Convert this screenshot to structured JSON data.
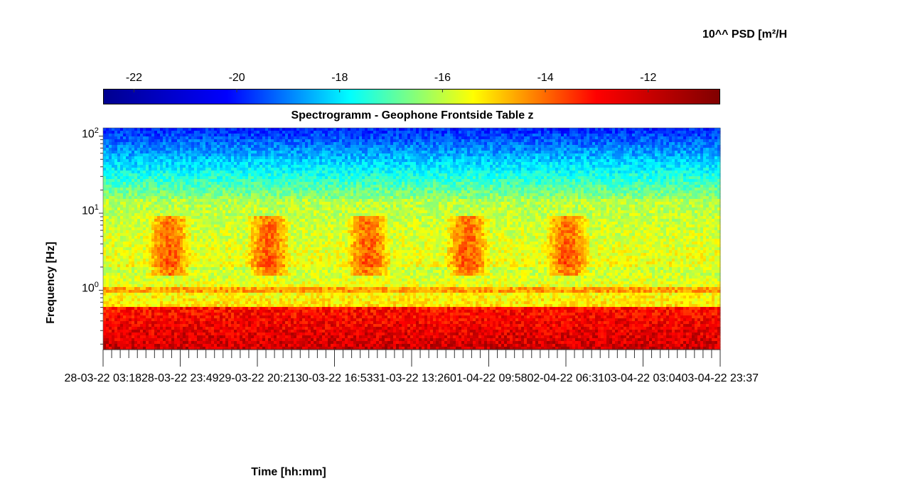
{
  "colorbar": {
    "label": "10^^ PSD [m²/H",
    "ticks": [
      "-22",
      "-20",
      "-18",
      "-16",
      "-14",
      "-12"
    ],
    "range": [
      -22.6,
      -10.6
    ],
    "tick_values": [
      -22,
      -20,
      -18,
      -16,
      -14,
      -12
    ]
  },
  "chart_data": {
    "type": "heatmap",
    "title": "Spectrogramm - Geophone Frontside Table z",
    "xlabel": "Time [hh:mm]",
    "ylabel": "Frequency [Hz]",
    "y_scale": "log",
    "y_range_hz": [
      0.17,
      128
    ],
    "y_tick_values": [
      1,
      10,
      100
    ],
    "y_tick_labels": [
      {
        "base": "10",
        "exp": "0"
      },
      {
        "base": "10",
        "exp": "1"
      },
      {
        "base": "10",
        "exp": "2"
      }
    ],
    "x_tick_labels": [
      "28-03-22 03:18",
      "28-03-22 23:49",
      "29-03-22 20:21",
      "30-03-22 16:53",
      "31-03-22 13:26",
      "01-04-22 09:58",
      "02-04-22 06:31",
      "03-04-22 03:04",
      "03-04-22 23:37"
    ],
    "colormap": "jet",
    "color_range_log10_psd": [
      -22.6,
      -10.6
    ],
    "colors": [
      "#00008f",
      "#0000ff",
      "#00ffff",
      "#ffff00",
      "#ff0000",
      "#800000"
    ],
    "features": {
      "daytime_activity_band_hz": [
        2,
        8
      ],
      "daytime_band_level": -12.5,
      "low_frequency_level": -11.5,
      "high_frequency_level": -20.5
    }
  }
}
